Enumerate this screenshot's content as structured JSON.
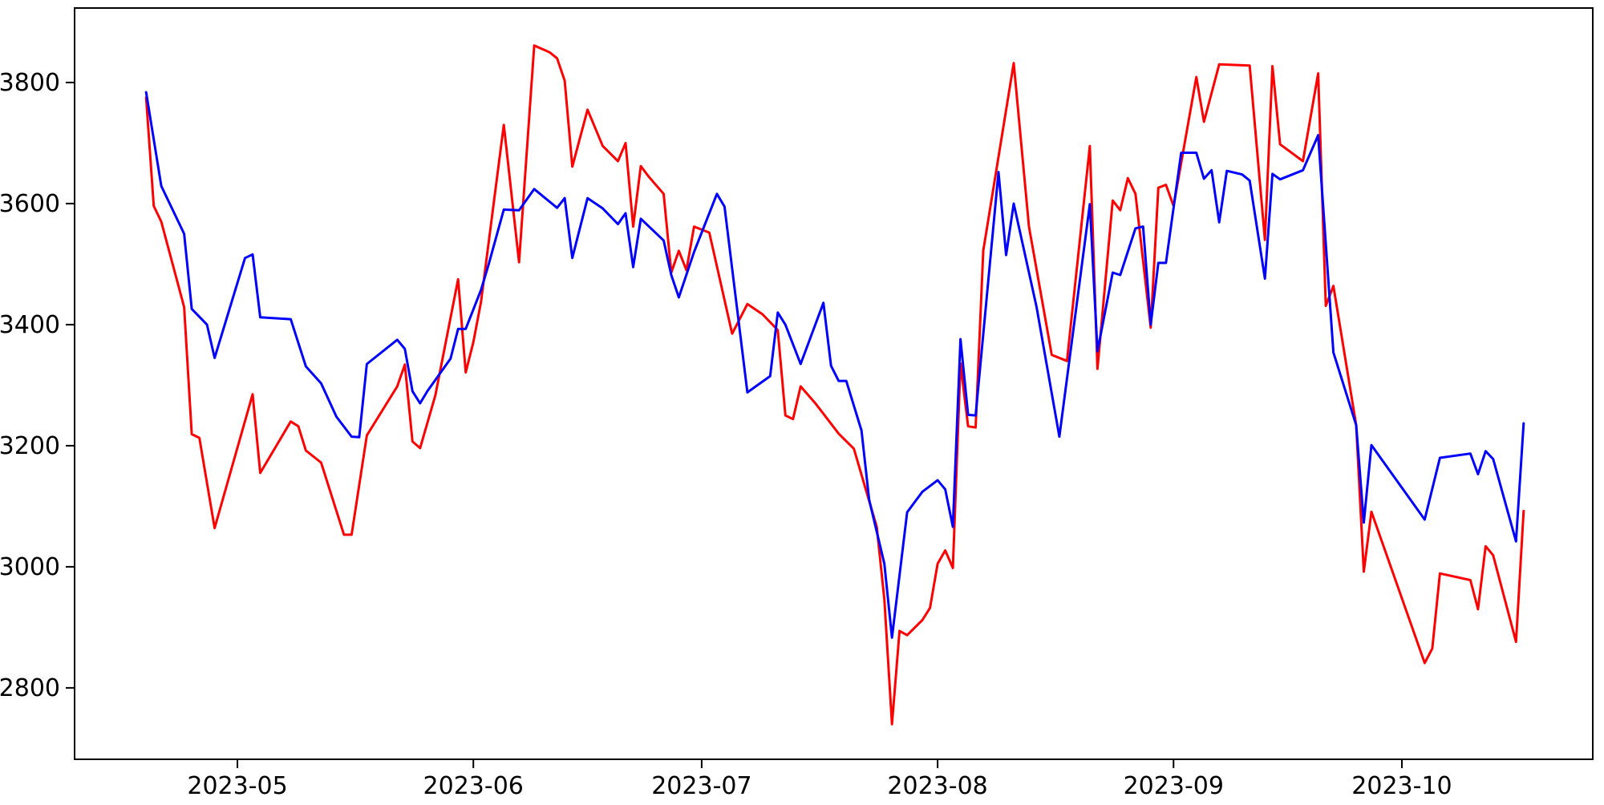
{
  "figure": {
    "background": "#ffffff",
    "frame_color": "#000000"
  },
  "chart_data": {
    "type": "line",
    "title": "",
    "xlabel": "",
    "ylabel": "",
    "grid": false,
    "legend": null,
    "x_tick_labels": [
      "2023-05",
      "2023-06",
      "2023-07",
      "2023-08",
      "2023-09",
      "2023-10"
    ],
    "x_tick_dates": [
      "2023-05-01",
      "2023-06-01",
      "2023-07-01",
      "2023-08-01",
      "2023-09-01",
      "2023-10-01"
    ],
    "y_ticks": [
      2800,
      3000,
      3200,
      3400,
      3600,
      3800
    ],
    "xlim": [
      "2023-04-09T14:30:00Z",
      "2023-10-26T02:00:00Z"
    ],
    "ylim": [
      2682,
      3923
    ],
    "series": [
      {
        "name": "red-series",
        "color": "#ff0000",
        "points": [
          [
            "2023-04-19",
            3775
          ],
          [
            "2023-04-20",
            3596
          ],
          [
            "2023-04-21",
            3570
          ],
          [
            "2023-04-24",
            3429
          ],
          [
            "2023-04-25",
            3219
          ],
          [
            "2023-04-26",
            3213
          ],
          [
            "2023-04-28",
            3064
          ],
          [
            "2023-05-03",
            3285
          ],
          [
            "2023-05-04",
            3155
          ],
          [
            "2023-05-08",
            3240
          ],
          [
            "2023-05-09",
            3232
          ],
          [
            "2023-05-10",
            3192
          ],
          [
            "2023-05-12",
            3172
          ],
          [
            "2023-05-15",
            3053
          ],
          [
            "2023-05-16",
            3053
          ],
          [
            "2023-05-18",
            3217
          ],
          [
            "2023-05-22",
            3298
          ],
          [
            "2023-05-23",
            3334
          ],
          [
            "2023-05-24",
            3207
          ],
          [
            "2023-05-25",
            3196
          ],
          [
            "2023-05-27",
            3283
          ],
          [
            "2023-05-30",
            3475
          ],
          [
            "2023-05-31",
            3321
          ],
          [
            "2023-06-01",
            3371
          ],
          [
            "2023-06-02",
            3437
          ],
          [
            "2023-06-05",
            3730
          ],
          [
            "2023-06-07",
            3503
          ],
          [
            "2023-06-09",
            3861
          ],
          [
            "2023-06-11",
            3850
          ],
          [
            "2023-06-12",
            3840
          ],
          [
            "2023-06-13",
            3803
          ],
          [
            "2023-06-14",
            3661
          ],
          [
            "2023-06-16",
            3755
          ],
          [
            "2023-06-18",
            3695
          ],
          [
            "2023-06-20",
            3670
          ],
          [
            "2023-06-21",
            3700
          ],
          [
            "2023-06-22",
            3562
          ],
          [
            "2023-06-23",
            3662
          ],
          [
            "2023-06-24",
            3645
          ],
          [
            "2023-06-26",
            3616
          ],
          [
            "2023-06-27",
            3486
          ],
          [
            "2023-06-28",
            3522
          ],
          [
            "2023-06-29",
            3490
          ],
          [
            "2023-06-30",
            3562
          ],
          [
            "2023-07-02",
            3552
          ],
          [
            "2023-07-05",
            3385
          ],
          [
            "2023-07-07",
            3434
          ],
          [
            "2023-07-09",
            3417
          ],
          [
            "2023-07-11",
            3391
          ],
          [
            "2023-07-12",
            3250
          ],
          [
            "2023-07-13",
            3244
          ],
          [
            "2023-07-14",
            3298
          ],
          [
            "2023-07-16",
            3269
          ],
          [
            "2023-07-19",
            3220
          ],
          [
            "2023-07-21",
            3195
          ],
          [
            "2023-07-24",
            3066
          ],
          [
            "2023-07-25",
            2946
          ],
          [
            "2023-07-26",
            2740
          ],
          [
            "2023-07-27",
            2894
          ],
          [
            "2023-07-28",
            2887
          ],
          [
            "2023-07-30",
            2912
          ],
          [
            "2023-07-31",
            2932
          ],
          [
            "2023-08-01",
            3005
          ],
          [
            "2023-08-02",
            3027
          ],
          [
            "2023-08-03",
            2998
          ],
          [
            "2023-08-04",
            3336
          ],
          [
            "2023-08-05",
            3232
          ],
          [
            "2023-08-06",
            3230
          ],
          [
            "2023-08-07",
            3522
          ],
          [
            "2023-08-11",
            3832
          ],
          [
            "2023-08-13",
            3562
          ],
          [
            "2023-08-16",
            3350
          ],
          [
            "2023-08-18",
            3340
          ],
          [
            "2023-08-21",
            3695
          ],
          [
            "2023-08-22",
            3327
          ],
          [
            "2023-08-24",
            3605
          ],
          [
            "2023-08-25",
            3589
          ],
          [
            "2023-08-26",
            3642
          ],
          [
            "2023-08-27",
            3616
          ],
          [
            "2023-08-29",
            3395
          ],
          [
            "2023-08-30",
            3626
          ],
          [
            "2023-08-31",
            3631
          ],
          [
            "2023-09-01",
            3596
          ],
          [
            "2023-09-04",
            3809
          ],
          [
            "2023-09-05",
            3735
          ],
          [
            "2023-09-07",
            3830
          ],
          [
            "2023-09-11",
            3828
          ],
          [
            "2023-09-13",
            3540
          ],
          [
            "2023-09-14",
            3827
          ],
          [
            "2023-09-15",
            3698
          ],
          [
            "2023-09-18",
            3670
          ],
          [
            "2023-09-20",
            3815
          ],
          [
            "2023-09-21",
            3431
          ],
          [
            "2023-09-22",
            3464
          ],
          [
            "2023-09-25",
            3234
          ],
          [
            "2023-09-26",
            2992
          ],
          [
            "2023-09-27",
            3091
          ],
          [
            "2023-10-04",
            2841
          ],
          [
            "2023-10-05",
            2865
          ],
          [
            "2023-10-06",
            2989
          ],
          [
            "2023-10-10",
            2978
          ],
          [
            "2023-10-11",
            2930
          ],
          [
            "2023-10-12",
            3034
          ],
          [
            "2023-10-13",
            3019
          ],
          [
            "2023-10-16",
            2876
          ],
          [
            "2023-10-17",
            3092
          ]
        ]
      },
      {
        "name": "blue-series",
        "color": "#0000ff",
        "points": [
          [
            "2023-04-19",
            3784
          ],
          [
            "2023-04-21",
            3629
          ],
          [
            "2023-04-24",
            3550
          ],
          [
            "2023-04-25",
            3426
          ],
          [
            "2023-04-27",
            3400
          ],
          [
            "2023-04-28",
            3345
          ],
          [
            "2023-05-02",
            3510
          ],
          [
            "2023-05-03",
            3516
          ],
          [
            "2023-05-04",
            3412
          ],
          [
            "2023-05-08",
            3409
          ],
          [
            "2023-05-10",
            3331
          ],
          [
            "2023-05-12",
            3303
          ],
          [
            "2023-05-14",
            3248
          ],
          [
            "2023-05-16",
            3215
          ],
          [
            "2023-05-17",
            3214
          ],
          [
            "2023-05-18",
            3335
          ],
          [
            "2023-05-22",
            3375
          ],
          [
            "2023-05-23",
            3360
          ],
          [
            "2023-05-24",
            3290
          ],
          [
            "2023-05-25",
            3270
          ],
          [
            "2023-05-26",
            3291
          ],
          [
            "2023-05-29",
            3344
          ],
          [
            "2023-05-30",
            3393
          ],
          [
            "2023-05-31",
            3393
          ],
          [
            "2023-06-02",
            3457
          ],
          [
            "2023-06-03",
            3499
          ],
          [
            "2023-06-05",
            3590
          ],
          [
            "2023-06-07",
            3589
          ],
          [
            "2023-06-09",
            3624
          ],
          [
            "2023-06-12",
            3593
          ],
          [
            "2023-06-13",
            3609
          ],
          [
            "2023-06-14",
            3510
          ],
          [
            "2023-06-16",
            3609
          ],
          [
            "2023-06-18",
            3592
          ],
          [
            "2023-06-20",
            3566
          ],
          [
            "2023-06-21",
            3584
          ],
          [
            "2023-06-22",
            3495
          ],
          [
            "2023-06-23",
            3575
          ],
          [
            "2023-06-26",
            3539
          ],
          [
            "2023-06-27",
            3482
          ],
          [
            "2023-06-28",
            3445
          ],
          [
            "2023-06-30",
            3520
          ],
          [
            "2023-07-03",
            3616
          ],
          [
            "2023-07-04",
            3595
          ],
          [
            "2023-07-07",
            3288
          ],
          [
            "2023-07-10",
            3315
          ],
          [
            "2023-07-11",
            3420
          ],
          [
            "2023-07-12",
            3400
          ],
          [
            "2023-07-14",
            3335
          ],
          [
            "2023-07-17",
            3436
          ],
          [
            "2023-07-18",
            3332
          ],
          [
            "2023-07-19",
            3307
          ],
          [
            "2023-07-20",
            3307
          ],
          [
            "2023-07-22",
            3225
          ],
          [
            "2023-07-23",
            3111
          ],
          [
            "2023-07-25",
            3005
          ],
          [
            "2023-07-26",
            2883
          ],
          [
            "2023-07-28",
            3090
          ],
          [
            "2023-07-30",
            3124
          ],
          [
            "2023-08-01",
            3143
          ],
          [
            "2023-08-02",
            3128
          ],
          [
            "2023-08-03",
            3066
          ],
          [
            "2023-08-04",
            3376
          ],
          [
            "2023-08-05",
            3251
          ],
          [
            "2023-08-06",
            3250
          ],
          [
            "2023-08-09",
            3652
          ],
          [
            "2023-08-10",
            3515
          ],
          [
            "2023-08-11",
            3600
          ],
          [
            "2023-08-14",
            3429
          ],
          [
            "2023-08-17",
            3215
          ],
          [
            "2023-08-21",
            3599
          ],
          [
            "2023-08-22",
            3356
          ],
          [
            "2023-08-24",
            3486
          ],
          [
            "2023-08-25",
            3482
          ],
          [
            "2023-08-27",
            3559
          ],
          [
            "2023-08-28",
            3562
          ],
          [
            "2023-08-29",
            3400
          ],
          [
            "2023-08-30",
            3502
          ],
          [
            "2023-08-31",
            3502
          ],
          [
            "2023-09-02",
            3684
          ],
          [
            "2023-09-04",
            3684
          ],
          [
            "2023-09-05",
            3641
          ],
          [
            "2023-09-06",
            3655
          ],
          [
            "2023-09-07",
            3569
          ],
          [
            "2023-09-08",
            3654
          ],
          [
            "2023-09-10",
            3648
          ],
          [
            "2023-09-11",
            3638
          ],
          [
            "2023-09-13",
            3476
          ],
          [
            "2023-09-14",
            3649
          ],
          [
            "2023-09-15",
            3640
          ],
          [
            "2023-09-18",
            3655
          ],
          [
            "2023-09-20",
            3713
          ],
          [
            "2023-09-22",
            3354
          ],
          [
            "2023-09-25",
            3234
          ],
          [
            "2023-09-26",
            3073
          ],
          [
            "2023-09-27",
            3201
          ],
          [
            "2023-10-04",
            3078
          ],
          [
            "2023-10-06",
            3180
          ],
          [
            "2023-10-10",
            3187
          ],
          [
            "2023-10-11",
            3153
          ],
          [
            "2023-10-12",
            3191
          ],
          [
            "2023-10-13",
            3178
          ],
          [
            "2023-10-16",
            3042
          ],
          [
            "2023-10-17",
            3237
          ]
        ]
      }
    ]
  }
}
